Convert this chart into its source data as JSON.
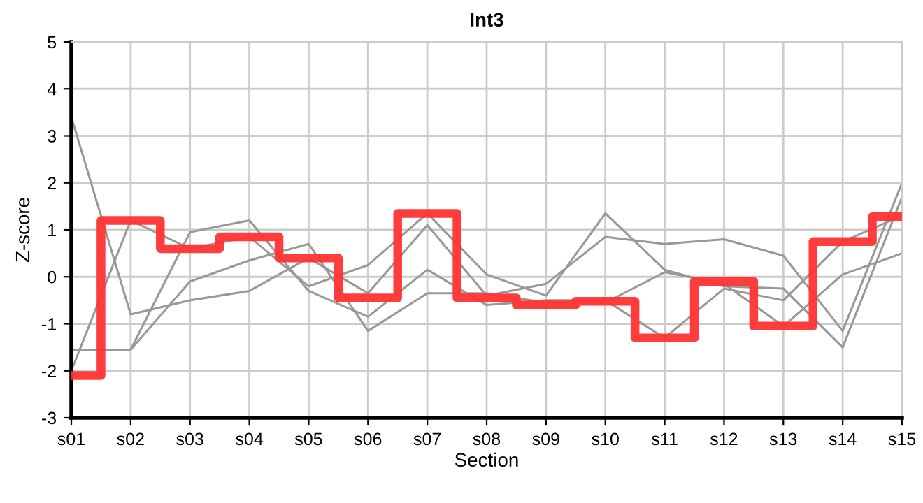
{
  "chart_data": {
    "type": "line",
    "title": "Int3",
    "xlabel": "Section",
    "ylabel": "Z-score",
    "categories": [
      "s01",
      "s02",
      "s03",
      "s04",
      "s05",
      "s06",
      "s07",
      "s08",
      "s09",
      "s10",
      "s11",
      "s12",
      "s13",
      "s14",
      "s15"
    ],
    "series": [
      {
        "color": "#999999",
        "values": [
          3.4,
          -0.8,
          -0.5,
          -0.3,
          0.4,
          -0.35,
          1.1,
          -0.4,
          -0.15,
          0.85,
          0.7,
          0.8,
          0.45,
          -1.15,
          2.0
        ]
      },
      {
        "color": "#999999",
        "values": [
          -2.0,
          1.2,
          0.6,
          0.85,
          -0.2,
          0.25,
          1.35,
          0.05,
          -0.4,
          1.35,
          0.15,
          -0.2,
          -0.25,
          -1.5,
          1.7
        ]
      },
      {
        "color": "#999999",
        "values": [
          -1.55,
          -1.55,
          0.95,
          1.2,
          -0.3,
          -0.85,
          0.15,
          -0.6,
          -0.5,
          -0.5,
          -1.3,
          -0.25,
          -0.5,
          0.75,
          1.3
        ]
      },
      {
        "color": "#999999",
        "values": [
          -1.55,
          -1.55,
          -0.1,
          0.35,
          0.7,
          -1.15,
          -0.35,
          -0.35,
          -0.55,
          -0.55,
          0.1,
          -0.15,
          -1.05,
          0.05,
          0.5
        ]
      },
      {
        "type": "step",
        "color": "#ff3333",
        "values": [
          -2.1,
          1.2,
          0.6,
          0.85,
          0.4,
          -0.45,
          1.35,
          -0.45,
          -0.6,
          -0.52,
          -1.3,
          -0.1,
          -1.05,
          0.75,
          1.28
        ]
      }
    ],
    "ylim": [
      -3,
      5
    ],
    "yticks": [
      -3,
      -2,
      -1,
      0,
      1,
      2,
      3,
      4,
      5
    ],
    "grid": true,
    "legend": false
  }
}
